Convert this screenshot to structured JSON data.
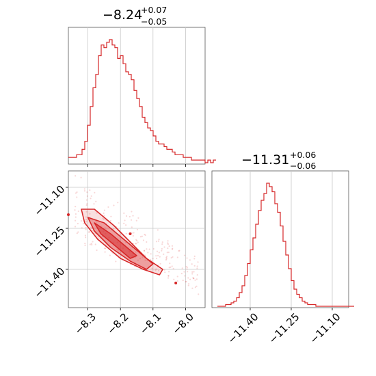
{
  "chart_data": [
    {
      "type": "histogram",
      "panel": "top-left",
      "title": {
        "value": "−8.24",
        "plus": "+0.07",
        "minus": "−0.05"
      },
      "xlim": [
        -8.36,
        -7.94
      ],
      "grid": true,
      "color": "#d62728",
      "bin_width": 0.0084,
      "x_start": -8.36,
      "counts": [
        2,
        2,
        2,
        3,
        3,
        5,
        8,
        14,
        21,
        28,
        33,
        40,
        44,
        43,
        45,
        46,
        44,
        43,
        39,
        40,
        37,
        34,
        33,
        31,
        27,
        24,
        21,
        17,
        15,
        13,
        12,
        10,
        8,
        7,
        7,
        6,
        5,
        5,
        4,
        3,
        3,
        3,
        2,
        2,
        2,
        1,
        1,
        1,
        1,
        1,
        0,
        1,
        0,
        1
      ]
    },
    {
      "type": "histogram",
      "panel": "bottom-right",
      "title": {
        "value": "−11.31",
        "plus": "+0.06",
        "minus": "−0.06"
      },
      "xlim": [
        -11.54,
        -11.04
      ],
      "xticks": [
        -11.4,
        -11.25,
        -11.1
      ],
      "xtick_labels": [
        "−11.40",
        "−11.25",
        "−11.10"
      ],
      "grid": true,
      "color": "#d62728",
      "bin_width": 0.01,
      "x_start": -11.52,
      "counts": [
        0,
        0,
        0,
        1,
        1,
        2,
        3,
        5,
        8,
        12,
        18,
        25,
        33,
        40,
        48,
        56,
        62,
        66,
        72,
        70,
        67,
        60,
        55,
        47,
        38,
        30,
        22,
        15,
        10,
        7,
        5,
        3,
        2,
        1,
        1,
        1,
        0,
        0,
        0,
        0,
        0,
        0,
        0,
        0,
        0,
        0,
        0,
        0,
        0,
        0
      ]
    },
    {
      "type": "scatter",
      "panel": "bottom-left",
      "xlim": [
        -8.36,
        -7.94
      ],
      "ylim": [
        -11.54,
        -11.04
      ],
      "xticks": [
        -8.3,
        -8.2,
        -8.1,
        -8.0
      ],
      "xtick_labels": [
        "−8.3",
        "−8.2",
        "−8.1",
        "−8.0"
      ],
      "yticks": [
        -11.1,
        -11.25,
        -11.4
      ],
      "ytick_labels": [
        "−11.10",
        "−11.25",
        "−11.40"
      ],
      "grid": true,
      "color": "#d62728",
      "contour_levels": [
        [
          [
            -8.32,
            -11.18
          ],
          [
            -8.28,
            -11.18
          ],
          [
            -8.22,
            -11.24
          ],
          [
            -8.17,
            -11.3
          ],
          [
            -8.12,
            -11.36
          ],
          [
            -8.07,
            -11.4
          ],
          [
            -8.08,
            -11.42
          ],
          [
            -8.13,
            -11.4
          ],
          [
            -8.2,
            -11.36
          ],
          [
            -8.27,
            -11.29
          ],
          [
            -8.31,
            -11.23
          ]
        ],
        [
          [
            -8.3,
            -11.21
          ],
          [
            -8.25,
            -11.23
          ],
          [
            -8.19,
            -11.29
          ],
          [
            -8.14,
            -11.34
          ],
          [
            -8.1,
            -11.38
          ],
          [
            -8.12,
            -11.4
          ],
          [
            -8.17,
            -11.37
          ],
          [
            -8.23,
            -11.32
          ],
          [
            -8.28,
            -11.26
          ]
        ],
        [
          [
            -8.28,
            -11.23
          ],
          [
            -8.23,
            -11.27
          ],
          [
            -8.18,
            -11.32
          ],
          [
            -8.15,
            -11.35
          ],
          [
            -8.17,
            -11.36
          ],
          [
            -8.21,
            -11.32
          ],
          [
            -8.26,
            -11.27
          ]
        ]
      ],
      "outliers": [
        [
          -8.36,
          -11.2
        ],
        [
          -8.17,
          -11.27
        ],
        [
          -8.03,
          -11.45
        ]
      ]
    }
  ]
}
